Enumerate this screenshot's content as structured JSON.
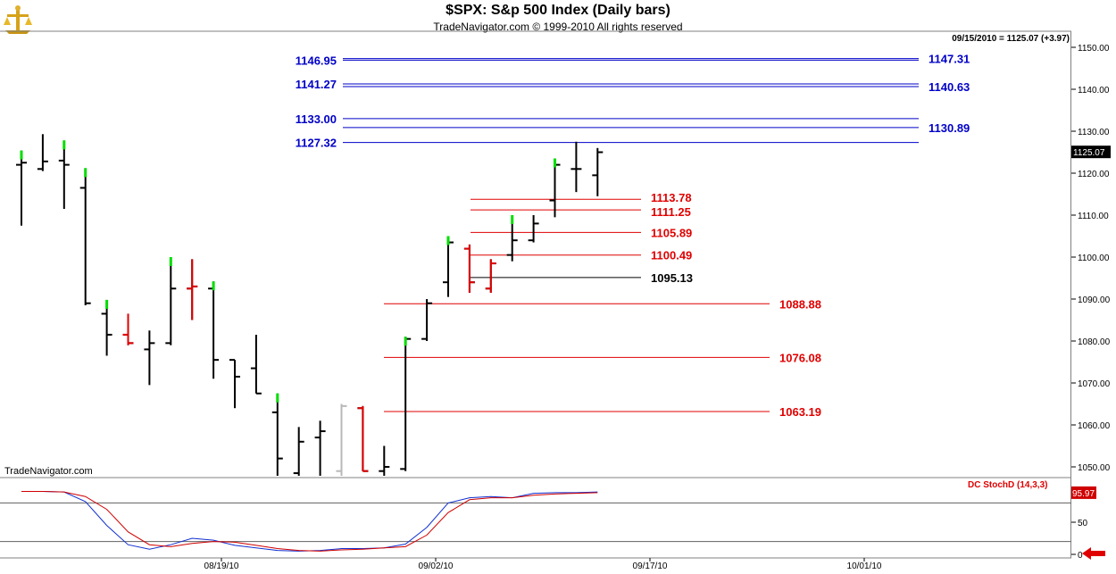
{
  "header": {
    "title": "$SPX:  S&p 500 Index  (Daily bars)",
    "subtitle": "TradeNavigator.com © 1999-2010 All rights reserved",
    "info": "09/15/2010 = 1125.07 (+3.97)",
    "watermark": "TradeNavigator.com"
  },
  "colors": {
    "bar": "#000000",
    "up_accent": "#00dd00",
    "down_accent": "#e00000",
    "grey_bar": "#b8b8b8",
    "blue_levels": "#0000c8",
    "red_levels": "#e00000",
    "stoch_k": "#1030d0",
    "stoch_d": "#d00000",
    "last_price_bg": "#000000",
    "stoch_badge_bg": "#d00000",
    "arrow": "#e00000"
  },
  "chart_data": [
    {
      "type": "ohlc",
      "title": "$SPX:  S&p 500 Index  (Daily bars)",
      "y_axis": {
        "ticks": [
          "1150.00",
          "1140.00",
          "1130.00",
          "1120.00",
          "1110.00",
          "1100.00",
          "1090.00",
          "1080.00",
          "1070.00",
          "1060.00",
          "1050.00"
        ],
        "range": [
          1047.5,
          1154
        ],
        "position": "right"
      },
      "x_axis": {
        "labels": [
          "08/19/10",
          "09/02/10",
          "09/17/10",
          "10/01/10"
        ]
      },
      "last_price_label": "1125.07",
      "bars": [
        {
          "o": 1122.0,
          "h": 1125.4,
          "l": 1107.5,
          "c": 1122.5,
          "mark": "up"
        },
        {
          "o": 1121.0,
          "h": 1129.3,
          "l": 1120.5,
          "c": 1122.8,
          "mark": "none"
        },
        {
          "o": 1123.0,
          "h": 1127.8,
          "l": 1111.5,
          "c": 1122.0,
          "mark": "up"
        },
        {
          "o": 1116.5,
          "h": 1121.2,
          "l": 1088.5,
          "c": 1089.0,
          "mark": "up"
        },
        {
          "o": 1086.5,
          "h": 1089.8,
          "l": 1076.5,
          "c": 1081.5,
          "mark": "up"
        },
        {
          "o": 1081.5,
          "h": 1086.5,
          "l": 1079.0,
          "c": 1079.5,
          "mark": "down"
        },
        {
          "o": 1078.0,
          "h": 1082.5,
          "l": 1069.5,
          "c": 1079.5,
          "mark": "none"
        },
        {
          "o": 1079.5,
          "h": 1100.0,
          "l": 1079.0,
          "c": 1092.5,
          "mark": "up"
        },
        {
          "o": 1092.5,
          "h": 1099.5,
          "l": 1085.0,
          "c": 1093.0,
          "mark": "down"
        },
        {
          "o": 1092.5,
          "h": 1094.2,
          "l": 1071.0,
          "c": 1075.5,
          "mark": "up"
        },
        {
          "o": 1075.5,
          "h": 1075.5,
          "l": 1064.0,
          "c": 1071.5,
          "mark": "none"
        },
        {
          "o": 1073.5,
          "h": 1081.5,
          "l": 1067.5,
          "c": 1067.5,
          "mark": "none"
        },
        {
          "o": 1063.0,
          "h": 1067.5,
          "l": 1047.5,
          "c": 1052.0,
          "mark": "up"
        },
        {
          "o": 1048.5,
          "h": 1059.5,
          "l": 1047.5,
          "c": 1056.0,
          "mark": "none"
        },
        {
          "o": 1057.0,
          "h": 1061.0,
          "l": 1047.5,
          "c": 1058.5,
          "mark": "none"
        },
        {
          "o": 1049.0,
          "h": 1065.0,
          "l": 1047.5,
          "c": 1064.5,
          "mark": "grey"
        },
        {
          "o": 1064.0,
          "h": 1064.5,
          "l": 1049.0,
          "c": 1049.0,
          "mark": "down"
        },
        {
          "o": 1049.0,
          "h": 1055.0,
          "l": 1047.5,
          "c": 1050.0,
          "mark": "none"
        },
        {
          "o": 1049.5,
          "h": 1081.0,
          "l": 1049.0,
          "c": 1080.5,
          "mark": "up"
        },
        {
          "o": 1080.5,
          "h": 1090.0,
          "l": 1080.0,
          "c": 1089.0,
          "mark": "none"
        },
        {
          "o": 1094.0,
          "h": 1105.0,
          "l": 1090.5,
          "c": 1103.5,
          "mark": "up"
        },
        {
          "o": 1102.0,
          "h": 1103.0,
          "l": 1091.5,
          "c": 1094.0,
          "mark": "down"
        },
        {
          "o": 1092.5,
          "h": 1099.5,
          "l": 1091.5,
          "c": 1098.5,
          "mark": "down"
        },
        {
          "o": 1100.5,
          "h": 1110.0,
          "l": 1099.0,
          "c": 1104.0,
          "mark": "up"
        },
        {
          "o": 1104.0,
          "h": 1110.0,
          "l": 1103.5,
          "c": 1108.0,
          "mark": "none"
        },
        {
          "o": 1113.5,
          "h": 1123.5,
          "l": 1109.5,
          "c": 1122.0,
          "mark": "up"
        },
        {
          "o": 1121.0,
          "h": 1127.5,
          "l": 1115.5,
          "c": 1121.0,
          "mark": "none"
        },
        {
          "o": 1119.5,
          "h": 1126.0,
          "l": 1114.5,
          "c": 1125.0,
          "mark": "none"
        }
      ],
      "levels": [
        {
          "label": "1146.95",
          "value": 1146.95,
          "color": "blue",
          "side": "left"
        },
        {
          "label": "1147.31",
          "value": 1147.31,
          "color": "blue",
          "side": "right"
        },
        {
          "label": "1141.27",
          "value": 1141.27,
          "color": "blue",
          "side": "left"
        },
        {
          "label": "1140.63",
          "value": 1140.63,
          "color": "blue",
          "side": "right"
        },
        {
          "label": "1133.00",
          "value": 1133.0,
          "color": "blue",
          "side": "left"
        },
        {
          "label": "1130.89",
          "value": 1130.89,
          "color": "blue",
          "side": "right"
        },
        {
          "label": "1127.32",
          "value": 1127.32,
          "color": "blue",
          "side": "left"
        },
        {
          "label": "1113.78",
          "value": 1113.78,
          "color": "red",
          "side": "right"
        },
        {
          "label": "1111.25",
          "value": 1111.25,
          "color": "red",
          "side": "right"
        },
        {
          "label": "1105.89",
          "value": 1105.89,
          "color": "red",
          "side": "right"
        },
        {
          "label": "1100.49",
          "value": 1100.49,
          "color": "red",
          "side": "right"
        },
        {
          "label": "1095.13",
          "value": 1095.13,
          "color": "black",
          "side": "right"
        },
        {
          "label": "1088.88",
          "value": 1088.88,
          "color": "red",
          "side": "right"
        },
        {
          "label": "1076.08",
          "value": 1076.08,
          "color": "red",
          "side": "right"
        },
        {
          "label": "1063.19",
          "value": 1063.19,
          "color": "red",
          "side": "right"
        }
      ]
    },
    {
      "type": "line",
      "title": "DC StochD (14,3,3)",
      "y_axis": {
        "ticks": [
          "50",
          "0"
        ],
        "range": [
          -3,
          102
        ],
        "reference_lines": [
          80,
          20
        ]
      },
      "badge_label": "95.97",
      "series": [
        {
          "name": "K",
          "color": "blue",
          "values": [
            98,
            98,
            97,
            82,
            45,
            15,
            8,
            15,
            25,
            22,
            14,
            10,
            6,
            5,
            6,
            9,
            9,
            10,
            16,
            42,
            80,
            88,
            90,
            88,
            95,
            96,
            96,
            97
          ]
        },
        {
          "name": "D",
          "color": "red",
          "values": [
            98,
            98,
            97,
            90,
            70,
            35,
            15,
            12,
            17,
            20,
            19,
            14,
            9,
            6,
            5,
            7,
            8,
            10,
            12,
            30,
            65,
            85,
            88,
            88,
            92,
            94,
            95,
            96
          ]
        }
      ]
    }
  ]
}
